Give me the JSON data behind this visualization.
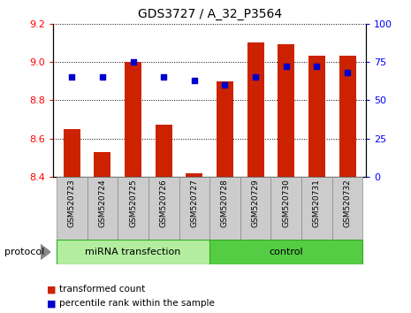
{
  "title": "GDS3727 / A_32_P3564",
  "samples": [
    "GSM520723",
    "GSM520724",
    "GSM520725",
    "GSM520726",
    "GSM520727",
    "GSM520728",
    "GSM520729",
    "GSM520730",
    "GSM520731",
    "GSM520732"
  ],
  "red_values": [
    8.65,
    8.53,
    9.0,
    8.67,
    8.42,
    8.9,
    9.1,
    9.09,
    9.03,
    9.03
  ],
  "blue_values": [
    65,
    65,
    75,
    65,
    63,
    60,
    65,
    72,
    72,
    68
  ],
  "ylim_left": [
    8.4,
    9.2
  ],
  "ylim_right": [
    0,
    100
  ],
  "yticks_left": [
    8.4,
    8.6,
    8.8,
    9.0,
    9.2
  ],
  "yticks_right": [
    0,
    25,
    50,
    75,
    100
  ],
  "group1_label": "miRNA transfection",
  "group2_label": "control",
  "group1_indices": [
    0,
    1,
    2,
    3,
    4
  ],
  "group2_indices": [
    5,
    6,
    7,
    8,
    9
  ],
  "protocol_label": "protocol",
  "legend_red": "transformed count",
  "legend_blue": "percentile rank within the sample",
  "bar_color": "#cc2200",
  "dot_color": "#0000cc",
  "group1_color": "#b3eea0",
  "group2_color": "#55cc44",
  "gray_box_color": "#cccccc",
  "bar_width": 0.55
}
